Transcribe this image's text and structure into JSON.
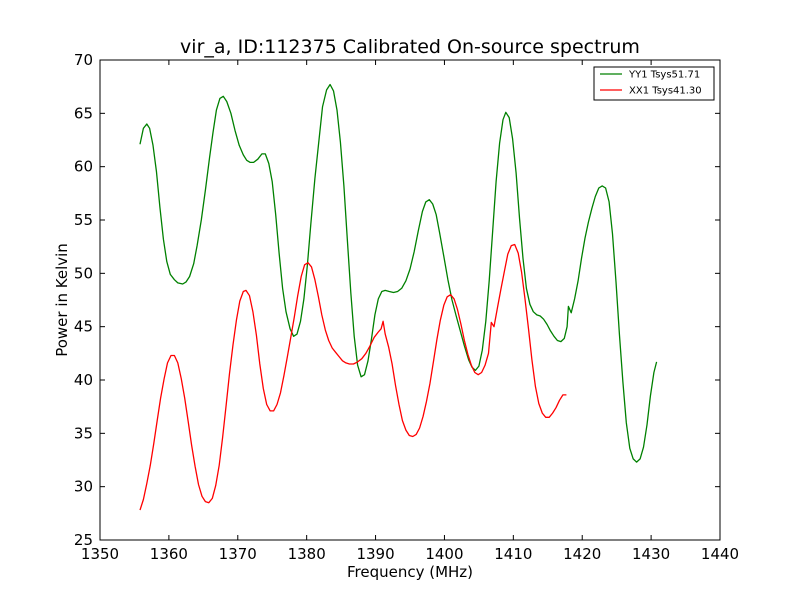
{
  "chart_data": {
    "type": "line",
    "title": "vir_a, ID:112375 Calibrated On-source spectrum",
    "xlabel": "Frequency (MHz)",
    "ylabel": "Power in Kelvin",
    "xlim": [
      1350,
      1440
    ],
    "ylim": [
      25,
      70
    ],
    "x_ticks": [
      1350,
      1360,
      1370,
      1380,
      1390,
      1400,
      1410,
      1420,
      1430,
      1440
    ],
    "y_ticks": [
      25,
      30,
      35,
      40,
      45,
      50,
      55,
      60,
      65,
      70
    ],
    "grid": false,
    "legend_position": "top-right",
    "series": [
      {
        "name": "YY1 Tsys51.71",
        "color": "#008000",
        "points": [
          [
            1355.8,
            62.1
          ],
          [
            1356.3,
            63.6
          ],
          [
            1356.8,
            64.0
          ],
          [
            1357.2,
            63.6
          ],
          [
            1357.7,
            62.0
          ],
          [
            1358.2,
            59.5
          ],
          [
            1358.7,
            56.2
          ],
          [
            1359.2,
            53.2
          ],
          [
            1359.7,
            51.1
          ],
          [
            1360.2,
            49.9
          ],
          [
            1360.8,
            49.4
          ],
          [
            1361.3,
            49.1
          ],
          [
            1362.0,
            49.0
          ],
          [
            1362.5,
            49.2
          ],
          [
            1363.0,
            49.7
          ],
          [
            1363.6,
            50.9
          ],
          [
            1364.1,
            52.6
          ],
          [
            1364.7,
            55.0
          ],
          [
            1365.3,
            57.8
          ],
          [
            1365.9,
            60.8
          ],
          [
            1366.4,
            63.2
          ],
          [
            1366.9,
            65.3
          ],
          [
            1367.4,
            66.4
          ],
          [
            1367.9,
            66.6
          ],
          [
            1368.4,
            66.1
          ],
          [
            1369.0,
            65.0
          ],
          [
            1369.6,
            63.4
          ],
          [
            1370.2,
            62.0
          ],
          [
            1370.8,
            61.1
          ],
          [
            1371.3,
            60.6
          ],
          [
            1371.8,
            60.4
          ],
          [
            1372.3,
            60.4
          ],
          [
            1372.9,
            60.7
          ],
          [
            1373.5,
            61.2
          ],
          [
            1374.0,
            61.2
          ],
          [
            1374.5,
            60.3
          ],
          [
            1375.0,
            58.6
          ],
          [
            1375.5,
            55.5
          ],
          [
            1376.0,
            51.9
          ],
          [
            1376.5,
            48.6
          ],
          [
            1377.0,
            46.4
          ],
          [
            1377.6,
            44.8
          ],
          [
            1378.1,
            44.1
          ],
          [
            1378.6,
            44.3
          ],
          [
            1379.1,
            45.5
          ],
          [
            1379.6,
            47.6
          ],
          [
            1380.1,
            50.8
          ],
          [
            1380.6,
            54.6
          ],
          [
            1381.2,
            58.9
          ],
          [
            1381.8,
            62.6
          ],
          [
            1382.3,
            65.6
          ],
          [
            1382.9,
            67.2
          ],
          [
            1383.4,
            67.7
          ],
          [
            1383.9,
            67.1
          ],
          [
            1384.4,
            65.3
          ],
          [
            1384.9,
            62.3
          ],
          [
            1385.4,
            58.2
          ],
          [
            1385.9,
            53.2
          ],
          [
            1386.4,
            48.2
          ],
          [
            1386.9,
            44.1
          ],
          [
            1387.4,
            41.4
          ],
          [
            1387.9,
            40.3
          ],
          [
            1388.4,
            40.5
          ],
          [
            1388.9,
            41.8
          ],
          [
            1389.4,
            43.8
          ],
          [
            1389.9,
            46.1
          ],
          [
            1390.4,
            47.6
          ],
          [
            1390.9,
            48.3
          ],
          [
            1391.4,
            48.4
          ],
          [
            1392.0,
            48.3
          ],
          [
            1392.6,
            48.2
          ],
          [
            1393.2,
            48.3
          ],
          [
            1393.8,
            48.6
          ],
          [
            1394.4,
            49.3
          ],
          [
            1395.0,
            50.4
          ],
          [
            1395.6,
            52.0
          ],
          [
            1396.2,
            54.0
          ],
          [
            1396.8,
            55.8
          ],
          [
            1397.3,
            56.7
          ],
          [
            1397.8,
            56.9
          ],
          [
            1398.3,
            56.5
          ],
          [
            1398.8,
            55.5
          ],
          [
            1399.3,
            53.8
          ],
          [
            1399.9,
            51.6
          ],
          [
            1400.5,
            49.4
          ],
          [
            1401.1,
            47.5
          ],
          [
            1401.7,
            46.0
          ],
          [
            1402.3,
            44.6
          ],
          [
            1402.9,
            43.2
          ],
          [
            1403.5,
            41.9
          ],
          [
            1404.0,
            41.2
          ],
          [
            1404.5,
            40.9
          ],
          [
            1405.0,
            41.3
          ],
          [
            1405.5,
            42.8
          ],
          [
            1406.0,
            45.5
          ],
          [
            1406.5,
            49.3
          ],
          [
            1407.0,
            54.0
          ],
          [
            1407.5,
            58.6
          ],
          [
            1408.0,
            62.2
          ],
          [
            1408.5,
            64.4
          ],
          [
            1408.9,
            65.1
          ],
          [
            1409.4,
            64.6
          ],
          [
            1409.9,
            62.6
          ],
          [
            1410.4,
            59.4
          ],
          [
            1410.9,
            55.2
          ],
          [
            1411.4,
            51.4
          ],
          [
            1411.9,
            48.6
          ],
          [
            1412.4,
            47.1
          ],
          [
            1412.9,
            46.4
          ],
          [
            1413.4,
            46.1
          ],
          [
            1413.9,
            46.0
          ],
          [
            1414.4,
            45.7
          ],
          [
            1414.9,
            45.2
          ],
          [
            1415.4,
            44.6
          ],
          [
            1415.9,
            44.1
          ],
          [
            1416.4,
            43.7
          ],
          [
            1416.9,
            43.6
          ],
          [
            1417.4,
            43.9
          ],
          [
            1417.8,
            45.0
          ],
          [
            1418.0,
            46.9
          ],
          [
            1418.4,
            46.3
          ],
          [
            1418.9,
            47.6
          ],
          [
            1419.4,
            49.3
          ],
          [
            1419.9,
            51.4
          ],
          [
            1420.4,
            53.3
          ],
          [
            1420.9,
            54.8
          ],
          [
            1421.4,
            56.1
          ],
          [
            1421.9,
            57.2
          ],
          [
            1422.4,
            58.0
          ],
          [
            1422.9,
            58.2
          ],
          [
            1423.4,
            58.0
          ],
          [
            1423.9,
            56.7
          ],
          [
            1424.4,
            53.7
          ],
          [
            1424.9,
            49.2
          ],
          [
            1425.4,
            44.3
          ],
          [
            1425.9,
            39.8
          ],
          [
            1426.4,
            36.0
          ],
          [
            1426.9,
            33.6
          ],
          [
            1427.4,
            32.6
          ],
          [
            1427.9,
            32.3
          ],
          [
            1428.4,
            32.6
          ],
          [
            1428.9,
            33.7
          ],
          [
            1429.4,
            35.8
          ],
          [
            1429.9,
            38.5
          ],
          [
            1430.4,
            40.7
          ],
          [
            1430.8,
            41.7
          ]
        ]
      },
      {
        "name": "XX1 Tsys41.30",
        "color": "#ff0000",
        "points": [
          [
            1355.8,
            27.8
          ],
          [
            1356.3,
            28.8
          ],
          [
            1356.8,
            30.3
          ],
          [
            1357.3,
            32.0
          ],
          [
            1357.8,
            34.0
          ],
          [
            1358.3,
            36.2
          ],
          [
            1358.8,
            38.3
          ],
          [
            1359.3,
            40.1
          ],
          [
            1359.8,
            41.6
          ],
          [
            1360.3,
            42.3
          ],
          [
            1360.8,
            42.3
          ],
          [
            1361.3,
            41.6
          ],
          [
            1361.8,
            40.1
          ],
          [
            1362.3,
            38.3
          ],
          [
            1362.8,
            36.1
          ],
          [
            1363.3,
            33.9
          ],
          [
            1363.8,
            31.9
          ],
          [
            1364.3,
            30.2
          ],
          [
            1364.8,
            29.1
          ],
          [
            1365.3,
            28.6
          ],
          [
            1365.8,
            28.5
          ],
          [
            1366.3,
            28.9
          ],
          [
            1366.8,
            30.1
          ],
          [
            1367.3,
            32.0
          ],
          [
            1367.8,
            34.6
          ],
          [
            1368.3,
            37.6
          ],
          [
            1368.8,
            40.6
          ],
          [
            1369.3,
            43.3
          ],
          [
            1369.8,
            45.6
          ],
          [
            1370.3,
            47.4
          ],
          [
            1370.8,
            48.3
          ],
          [
            1371.2,
            48.4
          ],
          [
            1371.7,
            47.9
          ],
          [
            1372.2,
            46.4
          ],
          [
            1372.7,
            44.2
          ],
          [
            1373.2,
            41.5
          ],
          [
            1373.7,
            39.2
          ],
          [
            1374.2,
            37.7
          ],
          [
            1374.7,
            37.1
          ],
          [
            1375.2,
            37.1
          ],
          [
            1375.7,
            37.7
          ],
          [
            1376.2,
            38.8
          ],
          [
            1376.7,
            40.4
          ],
          [
            1377.2,
            42.2
          ],
          [
            1377.7,
            44.0
          ],
          [
            1378.2,
            45.9
          ],
          [
            1378.7,
            47.9
          ],
          [
            1379.2,
            49.7
          ],
          [
            1379.7,
            50.8
          ],
          [
            1380.2,
            51.0
          ],
          [
            1380.7,
            50.6
          ],
          [
            1381.2,
            49.4
          ],
          [
            1381.7,
            47.8
          ],
          [
            1382.2,
            46.1
          ],
          [
            1382.7,
            44.7
          ],
          [
            1383.2,
            43.7
          ],
          [
            1383.7,
            43.0
          ],
          [
            1384.2,
            42.6
          ],
          [
            1384.7,
            42.2
          ],
          [
            1385.2,
            41.8
          ],
          [
            1385.7,
            41.6
          ],
          [
            1386.2,
            41.5
          ],
          [
            1386.8,
            41.5
          ],
          [
            1387.4,
            41.7
          ],
          [
            1388.0,
            42.0
          ],
          [
            1388.6,
            42.5
          ],
          [
            1389.2,
            43.2
          ],
          [
            1389.8,
            44.0
          ],
          [
            1390.4,
            44.5
          ],
          [
            1390.8,
            44.8
          ],
          [
            1391.1,
            45.5
          ],
          [
            1391.4,
            44.3
          ],
          [
            1391.9,
            43.1
          ],
          [
            1392.4,
            41.5
          ],
          [
            1392.9,
            39.5
          ],
          [
            1393.4,
            37.7
          ],
          [
            1393.9,
            36.2
          ],
          [
            1394.4,
            35.3
          ],
          [
            1394.9,
            34.8
          ],
          [
            1395.4,
            34.7
          ],
          [
            1395.9,
            34.9
          ],
          [
            1396.4,
            35.5
          ],
          [
            1396.9,
            36.6
          ],
          [
            1397.4,
            38.0
          ],
          [
            1397.9,
            39.7
          ],
          [
            1398.4,
            41.7
          ],
          [
            1398.9,
            43.8
          ],
          [
            1399.4,
            45.6
          ],
          [
            1399.9,
            47.0
          ],
          [
            1400.4,
            47.8
          ],
          [
            1400.9,
            48.0
          ],
          [
            1401.4,
            47.6
          ],
          [
            1401.9,
            46.6
          ],
          [
            1402.4,
            45.2
          ],
          [
            1402.9,
            43.7
          ],
          [
            1403.4,
            42.4
          ],
          [
            1403.9,
            41.4
          ],
          [
            1404.4,
            40.7
          ],
          [
            1404.9,
            40.5
          ],
          [
            1405.4,
            40.7
          ],
          [
            1405.9,
            41.4
          ],
          [
            1406.4,
            42.5
          ],
          [
            1406.8,
            45.4
          ],
          [
            1407.2,
            45.0
          ],
          [
            1407.7,
            46.8
          ],
          [
            1408.2,
            48.5
          ],
          [
            1408.7,
            50.2
          ],
          [
            1409.2,
            51.8
          ],
          [
            1409.7,
            52.6
          ],
          [
            1410.2,
            52.7
          ],
          [
            1410.7,
            51.9
          ],
          [
            1411.2,
            50.1
          ],
          [
            1411.7,
            47.6
          ],
          [
            1412.2,
            44.8
          ],
          [
            1412.7,
            41.9
          ],
          [
            1413.2,
            39.4
          ],
          [
            1413.7,
            37.8
          ],
          [
            1414.2,
            36.9
          ],
          [
            1414.7,
            36.5
          ],
          [
            1415.2,
            36.5
          ],
          [
            1415.7,
            36.9
          ],
          [
            1416.2,
            37.4
          ],
          [
            1416.7,
            38.1
          ],
          [
            1417.2,
            38.6
          ],
          [
            1417.7,
            38.6
          ]
        ]
      }
    ]
  }
}
